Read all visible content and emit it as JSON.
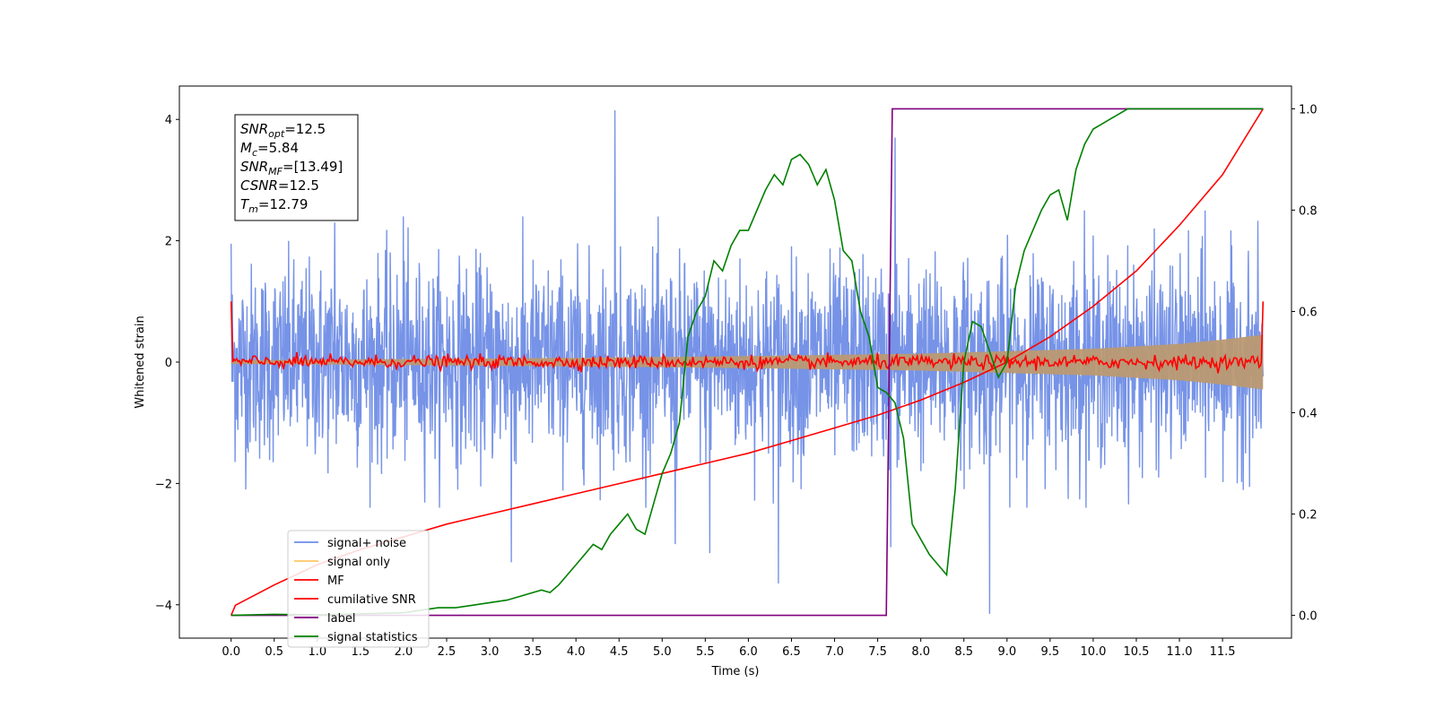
{
  "chart_data": {
    "type": "line",
    "xlabel": "Time (s)",
    "ylabel_left": "Whitened strain",
    "ylabel_right": "",
    "xlim": [
      -0.6,
      12.3
    ],
    "ylim_left": [
      -4.55,
      4.55
    ],
    "ylim_right": [
      -0.045,
      1.045
    ],
    "x_ticks": [
      0.0,
      0.5,
      1.0,
      1.5,
      2.0,
      2.5,
      3.0,
      3.5,
      4.0,
      4.5,
      5.0,
      5.5,
      6.0,
      6.5,
      7.0,
      7.5,
      8.0,
      8.5,
      9.0,
      9.5,
      10.0,
      10.5,
      11.0,
      11.5
    ],
    "x_tick_labels": [
      "0.0",
      "0.5",
      "1.0",
      "1.5",
      "2.0",
      "2.5",
      "3.0",
      "3.5",
      "4.0",
      "4.5",
      "5.0",
      "5.5",
      "6.0",
      "6.5",
      "7.0",
      "7.5",
      "8.0",
      "8.5",
      "9.0",
      "9.5",
      "10.0",
      "10.5",
      "11.0",
      "11.5"
    ],
    "y_left_ticks": [
      -4,
      -2,
      0,
      2,
      4
    ],
    "y_left_tick_labels": [
      "−4",
      "−2",
      "0",
      "2",
      "4"
    ],
    "y_right_ticks": [
      0.0,
      0.2,
      0.4,
      0.6,
      0.8,
      1.0
    ],
    "y_right_tick_labels": [
      "0.0",
      "0.2",
      "0.4",
      "0.6",
      "0.8",
      "1.0"
    ],
    "grid": false,
    "legend_position": "lower-left",
    "annotation": [
      {
        "symbol": "SNR",
        "sub": "opt",
        "value": "=12.5"
      },
      {
        "symbol": "M",
        "sub": "c",
        "value": "=5.84"
      },
      {
        "symbol": "SNR",
        "sub": "MF",
        "value": "=[13.49]"
      },
      {
        "symbol": "CSNR",
        "sub": "",
        "value": "=12.5"
      },
      {
        "symbol": "T",
        "sub": "m",
        "value": "=12.79"
      }
    ],
    "series": [
      {
        "name": "signal+ noise",
        "axis": "left",
        "color": "#6f8de6",
        "style": "noisy band around 0 with spikes",
        "x_range": [
          0.0,
          11.97
        ],
        "typical_amplitude": 1.6,
        "spikes": [
          [
            0.0,
            1.95
          ],
          [
            1.2,
            2.3
          ],
          [
            2.0,
            2.4
          ],
          [
            3.25,
            -3.3
          ],
          [
            4.45,
            4.15
          ],
          [
            5.15,
            -3.0
          ],
          [
            5.55,
            -3.15
          ],
          [
            6.35,
            -3.65
          ],
          [
            7.7,
            3.7
          ],
          [
            7.65,
            -3.05
          ],
          [
            8.8,
            -4.15
          ],
          [
            9.9,
            2.5
          ],
          [
            11.3,
            2.5
          ]
        ]
      },
      {
        "name": "signal only",
        "axis": "left",
        "color": "#bb9972",
        "style": "chirp envelope widening toward end",
        "envelope": [
          [
            0.0,
            0.03
          ],
          [
            2.0,
            0.05
          ],
          [
            4.0,
            0.07
          ],
          [
            6.0,
            0.1
          ],
          [
            8.0,
            0.14
          ],
          [
            10.0,
            0.22
          ],
          [
            11.0,
            0.3
          ],
          [
            11.5,
            0.37
          ],
          [
            11.97,
            0.45
          ]
        ]
      },
      {
        "name": "MF",
        "axis": "left",
        "color": "#ff0000",
        "style": "noise around 0, edge peaks at 1.0",
        "edge_values": [
          [
            0.0,
            1.0
          ],
          [
            11.97,
            1.0
          ]
        ],
        "typical_amplitude": 0.1
      },
      {
        "name": "cumilative SNR",
        "axis": "right",
        "color": "#ff0000",
        "x": [
          0.0,
          0.05,
          0.5,
          1.0,
          1.5,
          2.0,
          2.5,
          3.0,
          3.5,
          4.0,
          4.5,
          5.0,
          5.5,
          6.0,
          6.5,
          7.0,
          7.5,
          8.0,
          8.5,
          9.0,
          9.5,
          10.0,
          10.5,
          11.0,
          11.5,
          11.97
        ],
        "y": [
          0.0,
          0.02,
          0.06,
          0.1,
          0.13,
          0.155,
          0.18,
          0.2,
          0.22,
          0.24,
          0.26,
          0.28,
          0.3,
          0.32,
          0.345,
          0.37,
          0.395,
          0.425,
          0.46,
          0.5,
          0.55,
          0.61,
          0.68,
          0.77,
          0.87,
          1.0
        ]
      },
      {
        "name": "label",
        "axis": "right",
        "color": "#800080",
        "x": [
          0.0,
          7.6,
          7.67,
          11.97
        ],
        "y": [
          0.0,
          0.0,
          1.0,
          1.0
        ]
      },
      {
        "name": "signal statistics",
        "axis": "right",
        "color": "#008000",
        "x": [
          0.0,
          0.5,
          1.0,
          1.5,
          2.0,
          2.2,
          2.4,
          2.6,
          2.8,
          3.0,
          3.2,
          3.4,
          3.6,
          3.7,
          3.8,
          3.9,
          4.0,
          4.1,
          4.2,
          4.3,
          4.4,
          4.5,
          4.6,
          4.7,
          4.8,
          4.9,
          5.0,
          5.1,
          5.2,
          5.3,
          5.4,
          5.5,
          5.6,
          5.7,
          5.8,
          5.9,
          6.0,
          6.1,
          6.2,
          6.3,
          6.4,
          6.5,
          6.6,
          6.7,
          6.8,
          6.9,
          7.0,
          7.1,
          7.2,
          7.3,
          7.4,
          7.5,
          7.6,
          7.7,
          7.8,
          7.9,
          8.0,
          8.1,
          8.2,
          8.3,
          8.4,
          8.5,
          8.6,
          8.7,
          8.8,
          8.9,
          9.0,
          9.1,
          9.2,
          9.3,
          9.4,
          9.5,
          9.6,
          9.7,
          9.8,
          9.9,
          10.0,
          10.1,
          10.2,
          10.3,
          10.4,
          10.5,
          11.0,
          11.5,
          11.97
        ],
        "y": [
          0.0,
          0.002,
          0.001,
          0.003,
          0.005,
          0.01,
          0.015,
          0.015,
          0.02,
          0.025,
          0.03,
          0.04,
          0.05,
          0.045,
          0.06,
          0.08,
          0.1,
          0.12,
          0.14,
          0.13,
          0.16,
          0.18,
          0.2,
          0.17,
          0.16,
          0.22,
          0.28,
          0.32,
          0.38,
          0.55,
          0.6,
          0.63,
          0.7,
          0.68,
          0.73,
          0.76,
          0.76,
          0.8,
          0.84,
          0.87,
          0.85,
          0.9,
          0.91,
          0.89,
          0.85,
          0.88,
          0.82,
          0.72,
          0.7,
          0.6,
          0.55,
          0.45,
          0.44,
          0.42,
          0.35,
          0.18,
          0.15,
          0.12,
          0.1,
          0.08,
          0.25,
          0.5,
          0.58,
          0.57,
          0.52,
          0.47,
          0.5,
          0.65,
          0.72,
          0.76,
          0.8,
          0.83,
          0.84,
          0.78,
          0.88,
          0.93,
          0.96,
          0.97,
          0.98,
          0.99,
          1.0,
          1.0,
          1.0,
          1.0,
          1.0
        ]
      }
    ]
  }
}
